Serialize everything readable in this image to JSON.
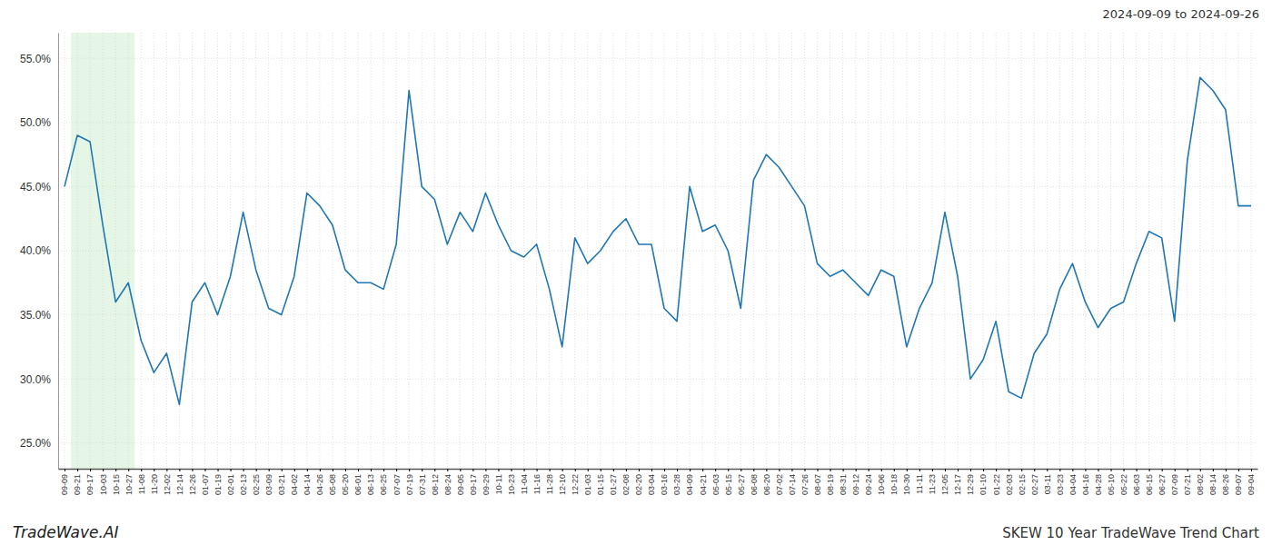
{
  "chart_data": {
    "type": "line",
    "title": "SKEW 10 Year TradeWave Trend Chart",
    "subtitle": "2024-09-09 to 2024-09-26",
    "annotations": [
      "TradeWave.AI"
    ],
    "color": "#1f77b4",
    "grid": true,
    "ylim": [
      23.0,
      57.0
    ],
    "yticks": [
      {
        "value": 25.0,
        "label": "25.0%"
      },
      {
        "value": 30.0,
        "label": "30.0%"
      },
      {
        "value": 35.0,
        "label": "35.0%"
      },
      {
        "value": 40.0,
        "label": "40.0%"
      },
      {
        "value": 45.0,
        "label": "45.0%"
      },
      {
        "value": 50.0,
        "label": "50.0%"
      },
      {
        "value": 55.0,
        "label": "55.0%"
      }
    ],
    "shade": {
      "xlim": [
        0.5,
        5.5
      ],
      "color": "#d6f0d6"
    },
    "categories": [
      "09-09",
      "09-21",
      "09-17",
      "10-03",
      "10-15",
      "10-27",
      "11-08",
      "11-20",
      "12-02",
      "12-14",
      "12-26",
      "01-07",
      "01-19",
      "02-01",
      "02-13",
      "02-25",
      "03-09",
      "03-21",
      "04-02",
      "04-14",
      "04-26",
      "05-08",
      "05-20",
      "06-01",
      "06-13",
      "06-25",
      "07-07",
      "07-19",
      "07-31",
      "08-12",
      "08-24",
      "09-05",
      "09-17",
      "09-29",
      "10-11",
      "10-23",
      "11-04",
      "11-16",
      "11-28",
      "12-10",
      "12-22",
      "01-03",
      "01-15",
      "01-27",
      "02-08",
      "02-20",
      "03-04",
      "03-16",
      "03-28",
      "04-09",
      "04-21",
      "05-03",
      "05-15",
      "05-27",
      "06-08",
      "06-20",
      "07-02",
      "07-14",
      "07-26",
      "08-07",
      "08-19",
      "08-31",
      "09-12",
      "09-24",
      "10-06",
      "10-18",
      "10-30",
      "11-11",
      "11-23",
      "12-05",
      "12-17",
      "12-29",
      "01-10",
      "01-22",
      "02-03",
      "02-15",
      "02-27",
      "03-11",
      "03-23",
      "04-04",
      "04-16",
      "04-28",
      "05-10",
      "05-22",
      "06-03",
      "06-15",
      "06-27",
      "07-09",
      "07-21",
      "08-02",
      "08-14",
      "08-26",
      "09-07",
      "09-04"
    ],
    "values": [
      45.0,
      49.0,
      48.5,
      42.0,
      36.0,
      37.5,
      33.0,
      30.5,
      32.0,
      28.0,
      36.0,
      37.5,
      35.0,
      38.0,
      43.0,
      38.5,
      35.5,
      35.0,
      38.0,
      44.5,
      43.5,
      42.0,
      38.5,
      37.5,
      37.5,
      37.0,
      40.5,
      52.5,
      45.0,
      44.0,
      40.5,
      43.0,
      41.5,
      44.5,
      42.0,
      40.0,
      39.5,
      40.5,
      37.0,
      32.5,
      41.0,
      39.0,
      40.0,
      41.5,
      42.5,
      40.5,
      40.5,
      35.5,
      34.5,
      45.0,
      41.5,
      42.0,
      40.0,
      35.5,
      45.5,
      47.5,
      46.5,
      45.0,
      43.5,
      39.0,
      38.0,
      38.5,
      37.5,
      36.5,
      38.5,
      38.0,
      32.5,
      35.5,
      37.5,
      43.0,
      38.0,
      30.0,
      31.5,
      34.5,
      29.0,
      28.5,
      32.0,
      33.5,
      37.0,
      39.0,
      36.0,
      34.0,
      35.5,
      36.0,
      39.0,
      41.5,
      41.0,
      34.5,
      47.0,
      53.5,
      52.5,
      51.0,
      43.5,
      43.5
    ]
  }
}
